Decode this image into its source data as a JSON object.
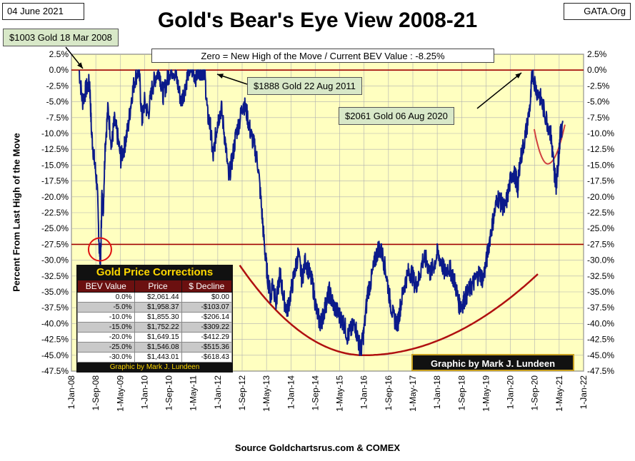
{
  "header": {
    "date": "04 June 2021",
    "title": "Gold's Bear's Eye View 2008-21",
    "site": "GATA.Org"
  },
  "annotations": {
    "top_left": "$1003 Gold 18 Mar 2008",
    "peak_2011": "$1888 Gold 22 Aug 2011",
    "peak_2020": "$2061 Gold 06 Aug 2020",
    "zero_note": "Zero = New High of the Move / Current  BEV Value : -8.25%",
    "credit": "Graphic by Mark J. Lundeen",
    "source": "Source Goldchartsrus.com & COMEX"
  },
  "corrections_table": {
    "title": "Gold Price Corrections",
    "headers": [
      "BEV Value",
      "Price",
      "$ Decline"
    ],
    "rows": [
      [
        "0.0%",
        "$2,061.44",
        "$0.00"
      ],
      [
        "-5.0%",
        "$1,958.37",
        "-$103.07"
      ],
      [
        "-10.0%",
        "$1,855.30",
        "-$206.14"
      ],
      [
        "-15.0%",
        "$1,752.22",
        "-$309.22"
      ],
      [
        "-20.0%",
        "$1,649.15",
        "-$412.29"
      ],
      [
        "-25.0%",
        "$1,546.08",
        "-$515.36"
      ],
      [
        "-30.0%",
        "$1,443.01",
        "-$618.43"
      ]
    ],
    "footer": "Graphic by Mark J. Lundeen"
  },
  "colors": {
    "plot_bg": "#ffffc0",
    "series": "#0b1a8a",
    "ref_lines": "#a00000",
    "curves": "#b01010"
  },
  "chart_data": {
    "type": "line",
    "ylabel": "Percent  From Last High of the Move",
    "xlabel": "",
    "ylim": [
      -47.5,
      2.5
    ],
    "yticks": [
      "2.5%",
      "0.0%",
      "-2.5%",
      "-5.0%",
      "-7.5%",
      "-10.0%",
      "-12.5%",
      "-15.0%",
      "-17.5%",
      "-20.0%",
      "-22.5%",
      "-25.0%",
      "-27.5%",
      "-30.0%",
      "-32.5%",
      "-35.0%",
      "-37.5%",
      "-40.0%",
      "-42.5%",
      "-45.0%",
      "-47.5%"
    ],
    "xticks": [
      "1-Jan-08",
      "1-Sep-08",
      "1-May-09",
      "1-Jan-10",
      "1-Sep-10",
      "1-May-11",
      "1-Jan-12",
      "1-Sep-12",
      "1-May-13",
      "1-Jan-14",
      "1-Sep-14",
      "1-May-15",
      "1-Jan-16",
      "1-Sep-16",
      "1-May-17",
      "1-Jan-18",
      "1-Sep-18",
      "1-May-19",
      "1-Jan-20",
      "1-Sep-20",
      "1-May-21",
      "1-Jan-22"
    ],
    "reference_lines": [
      0.0,
      -27.5
    ],
    "grid": true,
    "series": [
      {
        "x": [
          2008.21,
          2008.3,
          2008.4,
          2008.5,
          2008.55,
          2008.62,
          2008.7,
          2008.76,
          2008.8,
          2008.83,
          2008.87,
          2008.92,
          2009.0,
          2009.1,
          2009.17,
          2009.25,
          2009.35,
          2009.45,
          2009.55,
          2009.65,
          2009.75,
          2009.85,
          2009.93,
          2010.0,
          2010.1,
          2010.2,
          2010.3,
          2010.4,
          2010.5,
          2010.6,
          2010.7,
          2010.8,
          2010.9,
          2011.0,
          2011.1,
          2011.2,
          2011.3,
          2011.4,
          2011.5,
          2011.6,
          2011.64,
          2011.72,
          2011.8,
          2011.87,
          2011.95,
          2012.0,
          2012.1,
          2012.2,
          2012.3,
          2012.4,
          2012.5,
          2012.6,
          2012.7,
          2012.8,
          2012.9,
          2013.0,
          2013.1,
          2013.2,
          2013.28,
          2013.35,
          2013.45,
          2013.5,
          2013.6,
          2013.7,
          2013.8,
          2013.9,
          2014.0,
          2014.1,
          2014.2,
          2014.3,
          2014.4,
          2014.5,
          2014.6,
          2014.7,
          2014.8,
          2014.87,
          2014.95,
          2015.05,
          2015.15,
          2015.25,
          2015.35,
          2015.45,
          2015.55,
          2015.65,
          2015.75,
          2015.85,
          2015.92,
          2016.0,
          2016.1,
          2016.2,
          2016.3,
          2016.4,
          2016.5,
          2016.6,
          2016.7,
          2016.8,
          2016.92,
          2017.0,
          2017.1,
          2017.2,
          2017.3,
          2017.4,
          2017.5,
          2017.6,
          2017.7,
          2017.8,
          2017.9,
          2018.0,
          2018.1,
          2018.2,
          2018.3,
          2018.4,
          2018.5,
          2018.6,
          2018.68,
          2018.75,
          2018.85,
          2018.95,
          2019.05,
          2019.15,
          2019.25,
          2019.35,
          2019.45,
          2019.55,
          2019.65,
          2019.75,
          2019.85,
          2019.95,
          2020.05,
          2020.15,
          2020.2,
          2020.25,
          2020.35,
          2020.45,
          2020.55,
          2020.6,
          2020.7,
          2020.8,
          2020.9,
          2021.0,
          2021.1,
          2021.15,
          2021.2,
          2021.25,
          2021.3,
          2021.35,
          2021.43
        ],
        "values": [
          0.0,
          -5.0,
          -3.0,
          -2.0,
          -10.0,
          -14.0,
          -18.0,
          -28.0,
          -30.0,
          -20.0,
          -22.0,
          -12.0,
          -6.0,
          -12.0,
          -8.0,
          -10.0,
          -14.0,
          -12.0,
          -9.0,
          -4.0,
          -1.0,
          0.0,
          -8.0,
          -5.0,
          -7.0,
          -3.0,
          -1.0,
          0.0,
          -4.0,
          -2.0,
          0.0,
          0.0,
          -2.0,
          -5.0,
          -3.0,
          0.0,
          0.0,
          -1.0,
          0.0,
          0.0,
          0.0,
          -7.0,
          -9.0,
          -14.0,
          -10.0,
          -8.0,
          -6.0,
          -11.0,
          -17.0,
          -14.0,
          -10.0,
          -8.0,
          -5.0,
          -7.0,
          -10.0,
          -12.0,
          -15.0,
          -22.0,
          -28.0,
          -32.0,
          -36.0,
          -33.0,
          -37.0,
          -32.0,
          -36.0,
          -38.0,
          -35.0,
          -32.0,
          -29.0,
          -33.0,
          -30.0,
          -32.0,
          -34.0,
          -38.0,
          -40.0,
          -39.0,
          -37.0,
          -35.0,
          -37.0,
          -38.0,
          -39.0,
          -40.0,
          -42.0,
          -41.0,
          -40.0,
          -43.0,
          -44.0,
          -41.0,
          -35.0,
          -33.0,
          -30.0,
          -28.0,
          -29.0,
          -32.0,
          -36.0,
          -39.0,
          -40.0,
          -37.0,
          -34.0,
          -32.0,
          -32.0,
          -34.0,
          -33.0,
          -30.0,
          -30.0,
          -32.0,
          -31.0,
          -29.0,
          -30.0,
          -32.0,
          -31.0,
          -32.0,
          -34.0,
          -37.0,
          -37.0,
          -36.0,
          -35.0,
          -34.0,
          -33.0,
          -32.0,
          -33.0,
          -30.0,
          -26.0,
          -23.0,
          -20.0,
          -21.0,
          -22.0,
          -19.0,
          -16.0,
          -17.0,
          -19.0,
          -15.0,
          -12.0,
          -9.0,
          -5.0,
          0.0,
          -3.0,
          -4.0,
          -6.0,
          -8.0,
          -10.0,
          -13.0,
          -16.0,
          -18.0,
          -15.0,
          -11.0,
          -8.0
        ]
      }
    ]
  }
}
